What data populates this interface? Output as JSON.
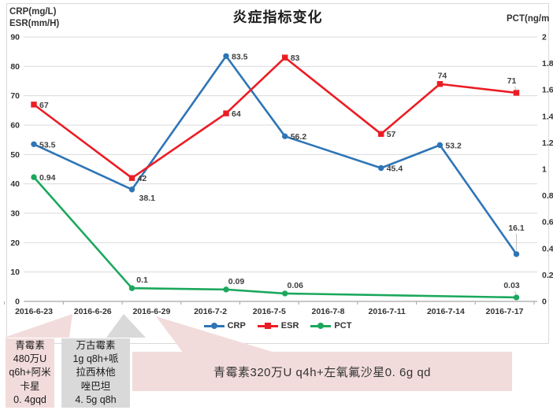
{
  "title": "炎症指标变化",
  "axis_left_header": [
    "CRP(mg/L)",
    "ESR(mm/H)"
  ],
  "axis_right_header": "PCT(ng/m",
  "chart_data": {
    "type": "line",
    "title": "炎症指标变化",
    "x_tick_labels": [
      "2016-6-23",
      "2016-6-26",
      "2016-6-29",
      "2016-7-2",
      "2016-7-5",
      "2016-7-8",
      "2016-7-11",
      "2016-7-14",
      "2016-7-17"
    ],
    "x_tick_step_days": 3,
    "left_axis": {
      "label": "CRP(mg/L) ESR(mm/H)",
      "min": 0,
      "max": 90,
      "step": 10
    },
    "right_axis": {
      "label": "PCT(ng/m",
      "min": 0,
      "max": 2,
      "step": 0.2
    },
    "grid": true,
    "legend_position": "bottom",
    "series": [
      {
        "name": "CRP",
        "axis": "left",
        "color": "#2E75B6",
        "marker": "circle",
        "points": [
          {
            "x": 0,
            "v": 53.5,
            "label": "53.5",
            "pos": "right"
          },
          {
            "x": 5,
            "v": 38.1,
            "label": "38.1",
            "pos": "right-down"
          },
          {
            "x": 9.8,
            "v": 83.5,
            "label": "83.5",
            "pos": "right"
          },
          {
            "x": 12.8,
            "v": 56.2,
            "label": "56.2",
            "pos": "right"
          },
          {
            "x": 17.7,
            "v": 45.4,
            "label": "45.4",
            "pos": "right"
          },
          {
            "x": 20.7,
            "v": 53.2,
            "label": "53.2",
            "pos": "right"
          },
          {
            "x": 24.6,
            "v": 16.1,
            "label": "16.1",
            "pos": "high-leader"
          }
        ]
      },
      {
        "name": "ESR",
        "axis": "left",
        "color": "#EC1C24",
        "marker": "square",
        "points": [
          {
            "x": 0,
            "v": 67,
            "label": "67",
            "pos": "right"
          },
          {
            "x": 5,
            "v": 42,
            "label": "42",
            "pos": "right"
          },
          {
            "x": 9.8,
            "v": 64,
            "label": "64",
            "pos": "right"
          },
          {
            "x": 12.8,
            "v": 83,
            "label": "83",
            "pos": "right"
          },
          {
            "x": 17.7,
            "v": 57,
            "label": "57",
            "pos": "right"
          },
          {
            "x": 20.7,
            "v": 74,
            "label": "74",
            "pos": "above"
          },
          {
            "x": 24.6,
            "v": 71,
            "label": "71",
            "pos": "above-leader"
          }
        ]
      },
      {
        "name": "PCT",
        "axis": "right",
        "color": "#1BA85C",
        "marker": "circle",
        "points": [
          {
            "x": 0,
            "v": 0.94,
            "label": "0.94",
            "pos": "right"
          },
          {
            "x": 5,
            "v": 0.1,
            "label": "0.1",
            "pos": "above-right"
          },
          {
            "x": 9.8,
            "v": 0.09,
            "label": "0.09",
            "pos": "above-right"
          },
          {
            "x": 12.8,
            "v": 0.06,
            "label": "0.06",
            "pos": "above-right"
          },
          {
            "x": 24.6,
            "v": 0.03,
            "label": "0.03",
            "pos": "above-leader"
          }
        ]
      }
    ]
  },
  "legend": [
    {
      "label": "CRP",
      "color": "#2E75B6",
      "marker": "circle"
    },
    {
      "label": "ESR",
      "color": "#EC1C24",
      "marker": "square"
    },
    {
      "label": "PCT",
      "color": "#1BA85C",
      "marker": "circle"
    }
  ],
  "annotations": {
    "box1": {
      "bg": "#F2DCDB",
      "lines": [
        "青霉素",
        "480万U",
        "q6h+阿米",
        "卡星",
        "0. 4gqd"
      ]
    },
    "box2": {
      "bg": "#D9D9D9",
      "lines": [
        "万古霉素",
        "1g q8h+哌",
        "拉西林他",
        "唑巴坦",
        "4. 5g q8h"
      ]
    },
    "box3": {
      "bg": "#F2DCDB",
      "text": "青霉素320万U q4h+左氧氟沙星0. 6g qd"
    }
  },
  "colors": {
    "grid": "#DADADA",
    "axis": "#A6A6A6",
    "tick_text": "#333333",
    "data_label": "#404040",
    "leader": "#BFBFBF",
    "frame": "#D9D9D9"
  }
}
